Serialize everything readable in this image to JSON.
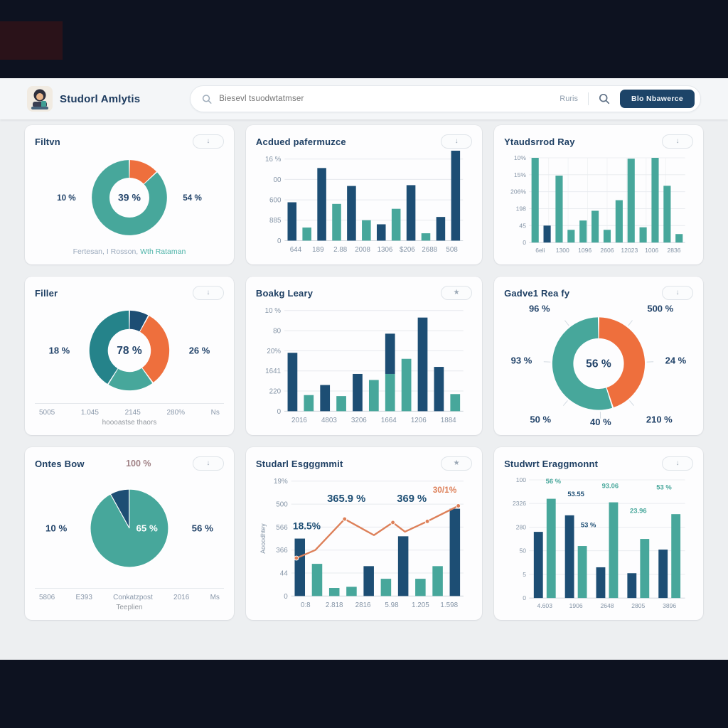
{
  "header": {
    "brand": "Studorl Amlytis",
    "search_placeholder": "Biesevl tsuodwtatmser",
    "right_label": "Ruris",
    "cta_label": "Blo Nbawerce"
  },
  "colors": {
    "navy": "#1d4e74",
    "teal": "#47a79b",
    "teal2": "#25838a",
    "orange": "#ee6f3d",
    "line": "#dd8059",
    "rose": "#a08185",
    "axis": "#8494a6",
    "grid": "#e7eaee"
  },
  "cards": [
    {
      "glyph": "↓"
    },
    {
      "glyph": "↓"
    },
    {
      "glyph": "↓"
    },
    {
      "glyph": "↓"
    },
    {
      "glyph": "★"
    },
    {
      "glyph": "↓"
    },
    {
      "glyph": "↓"
    },
    {
      "glyph": "★"
    },
    {
      "glyph": "↓"
    }
  ],
  "chart_data": [
    {
      "type": "donut",
      "title": "Filtvn",
      "center_label": "39 %",
      "side_labels": {
        "left": "10 %",
        "right": "54 %"
      },
      "segments": [
        {
          "value": 13,
          "c": "orange"
        },
        {
          "value": 87,
          "c": "teal"
        }
      ],
      "caption_parts": [
        {
          "text": "Fertesan, I Rosson, "
        },
        {
          "text": "Wth Rataman"
        }
      ]
    },
    {
      "type": "bar",
      "title": "Acdued pafermuzce",
      "y_ticks": [
        "16 %",
        "00",
        "600",
        "885",
        "0"
      ],
      "x_labels": [
        "644",
        "189",
        "2.88",
        "2008",
        "1306",
        "$206",
        "2688",
        "508"
      ],
      "bars": [
        {
          "v": 0.47,
          "c": "navy"
        },
        {
          "v": 0.16,
          "c": "teal"
        },
        {
          "v": 0.89,
          "c": "navy"
        },
        {
          "v": 0.45,
          "c": "teal"
        },
        {
          "v": 0.67,
          "c": "navy"
        },
        {
          "v": 0.25,
          "c": "teal"
        },
        {
          "v": 0.2,
          "c": "navy"
        },
        {
          "v": 0.39,
          "c": "teal"
        },
        {
          "v": 0.68,
          "c": "navy"
        },
        {
          "v": 0.09,
          "c": "teal"
        },
        {
          "v": 0.29,
          "c": "navy"
        },
        {
          "v": 1.12,
          "c": "navy"
        }
      ]
    },
    {
      "type": "bar",
      "title": "Ytaudsrrod Ray",
      "v_grid": true,
      "y_ticks": [
        "10%",
        "15%",
        "206%",
        "198",
        "45",
        "0"
      ],
      "x_labels": [
        "6eli",
        "1300",
        "1096",
        "2606",
        "12023",
        "1006",
        "2836"
      ],
      "bars": [
        {
          "v": 1.0,
          "c": "teal"
        },
        {
          "v": 0.2,
          "c": "navy"
        },
        {
          "v": 0.79,
          "c": "teal"
        },
        {
          "v": 0.15,
          "c": "teal"
        },
        {
          "v": 0.26,
          "c": "teal"
        },
        {
          "v": 0.375,
          "c": "teal"
        },
        {
          "v": 0.15,
          "c": "teal"
        },
        {
          "v": 0.5,
          "c": "teal"
        },
        {
          "v": 0.99,
          "c": "teal"
        },
        {
          "v": 0.18,
          "c": "teal"
        },
        {
          "v": 1.0,
          "c": "teal"
        },
        {
          "v": 0.67,
          "c": "teal"
        },
        {
          "v": 0.1,
          "c": "teal"
        }
      ]
    },
    {
      "type": "donut",
      "title": "Filler",
      "center_label": "78 %",
      "side_labels": {
        "left": "18 %",
        "right": "26 %"
      },
      "segments": [
        {
          "value": 8,
          "c": "navy"
        },
        {
          "value": 32,
          "c": "orange"
        },
        {
          "value": 19,
          "c": "teal"
        },
        {
          "value": 41,
          "c": "teal2"
        }
      ],
      "bottom_row": [
        "5005",
        "1.045",
        "2145",
        "280%",
        "Ns"
      ],
      "caption": "hoooastse thaors"
    },
    {
      "type": "bar",
      "title": "Boakg Leary",
      "y_ticks": [
        "10 %",
        "80",
        "20%",
        "1641",
        "220",
        "0"
      ],
      "x_labels": [
        "2016",
        "4803",
        "3206",
        "1664",
        "1206",
        "1884"
      ],
      "bars": [
        {
          "v": 0.58,
          "c": "navy"
        },
        {
          "v": 0.16,
          "c": "teal"
        },
        {
          "v": 0.26,
          "c": "navy"
        },
        {
          "v": 0.15,
          "c": "teal"
        },
        {
          "v": 0.37,
          "c": "navy"
        },
        {
          "v": 0.31,
          "c": "teal"
        },
        {
          "stack": [
            {
              "v": 0.37,
              "c": "teal"
            },
            {
              "v": 0.4,
              "c": "navy"
            }
          ]
        },
        {
          "v": 0.52,
          "c": "teal"
        },
        {
          "v": 0.93,
          "c": "navy"
        },
        {
          "v": 0.44,
          "c": "navy"
        },
        {
          "v": 0.17,
          "c": "teal"
        }
      ]
    },
    {
      "type": "donut",
      "title": "Gadve1 Rea fy",
      "center_label": "56 %",
      "segments": [
        {
          "value": 45,
          "c": "orange"
        },
        {
          "value": 55,
          "c": "teal"
        }
      ],
      "callouts": [
        {
          "text": "96 %",
          "a": -38,
          "r": 128
        },
        {
          "text": "500 %",
          "a": 38,
          "r": 128
        },
        {
          "text": "93 %",
          "a": -88,
          "r": 108
        },
        {
          "text": "24 %",
          "a": 88,
          "r": 108
        },
        {
          "text": "50 %",
          "a": -140,
          "r": 120
        },
        {
          "text": "40 %",
          "a": 178,
          "r": 96
        },
        {
          "text": "210 %",
          "a": 140,
          "r": 120
        }
      ]
    },
    {
      "type": "pie",
      "title": "Ontes Bow",
      "top_label": "100 %",
      "start_angle": -29,
      "segments": [
        {
          "value": 8,
          "c": "navy"
        },
        {
          "value": 92,
          "c": "teal"
        }
      ],
      "inner_label": "65 %",
      "side_labels": {
        "left": "10 %",
        "right": "56 %"
      },
      "bottom_row": [
        "5806",
        "E393",
        "Conkatzpost",
        "2016",
        "Ms"
      ],
      "caption": "Teeplien"
    },
    {
      "type": "combo",
      "title": "Studarl Esgggmmit",
      "y_axis_label": "Aooodhtey",
      "y_ticks": [
        "19%",
        "500",
        "566",
        "366",
        "44",
        "0"
      ],
      "x_labels": [
        "0:8",
        "2.818",
        "2816",
        "5.98",
        "1.205",
        "1.598"
      ],
      "bars": [
        {
          "v": 0.5,
          "c": "navy"
        },
        {
          "v": 0.28,
          "c": "teal"
        },
        {
          "v": 0.07,
          "c": "teal"
        },
        {
          "v": 0.08,
          "c": "teal"
        },
        {
          "v": 0.26,
          "c": "navy"
        },
        {
          "v": 0.15,
          "c": "teal"
        },
        {
          "v": 0.52,
          "c": "navy"
        },
        {
          "v": 0.15,
          "c": "teal"
        },
        {
          "v": 0.26,
          "c": "teal"
        },
        {
          "v": 0.76,
          "c": "navy"
        }
      ],
      "line": [
        {
          "x": 0.03,
          "y": 0.33,
          "m": 1
        },
        {
          "x": 0.14,
          "y": 0.4
        },
        {
          "x": 0.31,
          "y": 0.67,
          "m": 1
        },
        {
          "x": 0.48,
          "y": 0.53
        },
        {
          "x": 0.59,
          "y": 0.64,
          "m": 1
        },
        {
          "x": 0.66,
          "y": 0.56
        },
        {
          "x": 0.79,
          "y": 0.65,
          "m": 1
        },
        {
          "x": 0.97,
          "y": 0.785,
          "m": 1
        }
      ],
      "annotations": [
        {
          "text": "18.5%",
          "x": 0.09,
          "y": 0.58,
          "color": "navy",
          "size": 14
        },
        {
          "text": "365.9 %",
          "x": 0.32,
          "y": 0.82,
          "color": "navy",
          "size": 15
        },
        {
          "text": "369 %",
          "x": 0.7,
          "y": 0.82,
          "color": "navy",
          "size": 15
        },
        {
          "text": "30/1%",
          "x": 0.96,
          "y": 0.9,
          "color": "line",
          "size": 12
        }
      ]
    },
    {
      "type": "grouped",
      "title": "Studwrt Eraggmonnt",
      "y_ticks": [
        "100",
        "2326",
        "280",
        "50",
        "5",
        "0"
      ],
      "x_labels": [
        "4.603",
        "1906",
        "2648",
        "2805",
        "3896"
      ],
      "groups": [
        [
          0.56,
          0.84
        ],
        [
          0.7,
          0.44
        ],
        [
          0.26,
          0.81
        ],
        [
          0.21,
          0.5
        ],
        [
          0.41,
          0.71
        ]
      ],
      "annotations": [
        {
          "text": "56 %",
          "x": 0.155,
          "y": 0.97,
          "color": "teal",
          "size": 11
        },
        {
          "text": "53.55",
          "x": 0.3,
          "y": 0.86,
          "color": "navy",
          "size": 11
        },
        {
          "text": "53 %",
          "x": 0.38,
          "y": 0.6,
          "color": "navy",
          "size": 11
        },
        {
          "text": "93.06",
          "x": 0.52,
          "y": 0.93,
          "color": "teal",
          "size": 11
        },
        {
          "text": "23.96",
          "x": 0.7,
          "y": 0.72,
          "color": "teal",
          "size": 11
        },
        {
          "text": "53 %",
          "x": 0.865,
          "y": 0.92,
          "color": "teal",
          "size": 11
        }
      ]
    }
  ]
}
